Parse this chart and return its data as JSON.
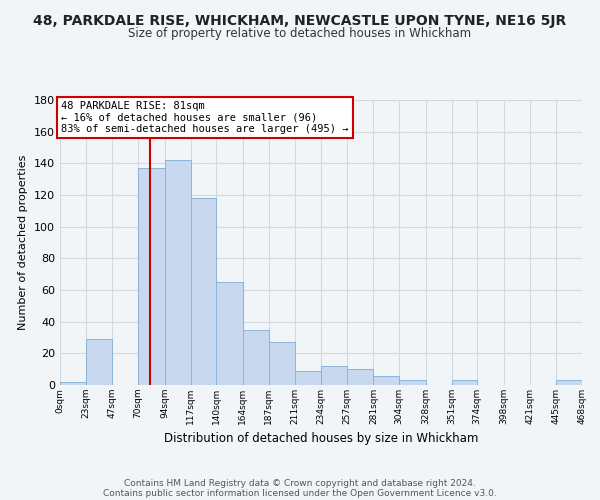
{
  "title": "48, PARKDALE RISE, WHICKHAM, NEWCASTLE UPON TYNE, NE16 5JR",
  "subtitle": "Size of property relative to detached houses in Whickham",
  "xlabel": "Distribution of detached houses by size in Whickham",
  "ylabel": "Number of detached properties",
  "bin_edges": [
    0,
    23,
    47,
    70,
    94,
    117,
    140,
    164,
    187,
    211,
    234,
    257,
    281,
    304,
    328,
    351,
    374,
    398,
    421,
    445,
    468
  ],
  "bar_heights": [
    2,
    29,
    0,
    137,
    142,
    118,
    65,
    35,
    27,
    9,
    12,
    10,
    6,
    3,
    0,
    3,
    0,
    0,
    0,
    3
  ],
  "bar_color": "#c8d8ee",
  "bar_edge_color": "#8ab4d8",
  "property_line_x": 81,
  "annotation_line1": "48 PARKDALE RISE: 81sqm",
  "annotation_line2": "← 16% of detached houses are smaller (96)",
  "annotation_line3": "83% of semi-detached houses are larger (495) →",
  "annotation_box_color": "#ffffff",
  "annotation_box_edge": "#cc0000",
  "vline_color": "#cc0000",
  "ylim": [
    0,
    180
  ],
  "yticks": [
    0,
    20,
    40,
    60,
    80,
    100,
    120,
    140,
    160,
    180
  ],
  "tick_labels": [
    "0sqm",
    "23sqm",
    "47sqm",
    "70sqm",
    "94sqm",
    "117sqm",
    "140sqm",
    "164sqm",
    "187sqm",
    "211sqm",
    "234sqm",
    "257sqm",
    "281sqm",
    "304sqm",
    "328sqm",
    "351sqm",
    "374sqm",
    "398sqm",
    "421sqm",
    "445sqm",
    "468sqm"
  ],
  "footer_line1": "Contains HM Land Registry data © Crown copyright and database right 2024.",
  "footer_line2": "Contains public sector information licensed under the Open Government Licence v3.0.",
  "bg_color": "#f2f5f8",
  "plot_bg_color": "#f2f5f8",
  "grid_color": "#d0d8e0"
}
